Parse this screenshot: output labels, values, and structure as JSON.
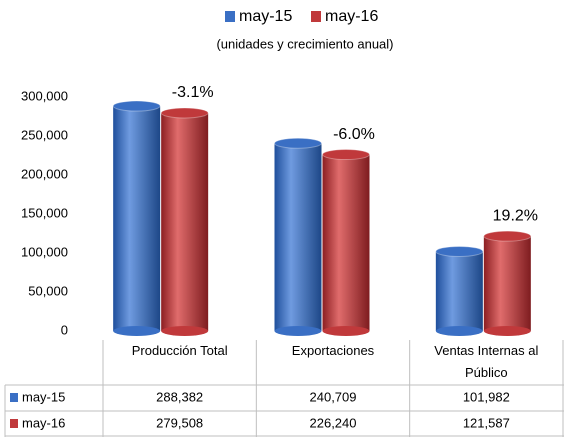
{
  "chart_data": {
    "type": "bar",
    "subtitle": "(unidades y crecimiento anual)",
    "categories": [
      "Producción Total",
      "Exportaciones",
      "Ventas Internas al Público"
    ],
    "series": [
      {
        "name": "may-15",
        "color": "#3a6fc4",
        "values": [
          288382,
          240709,
          101982
        ],
        "value_labels": [
          "288,382",
          "240,709",
          "101,982"
        ]
      },
      {
        "name": "may-16",
        "color": "#c0393b",
        "values": [
          279508,
          226240,
          121587
        ],
        "value_labels": [
          "279,508",
          "226,240",
          "121,587"
        ]
      }
    ],
    "growth": {
      "values": [
        -3.1,
        -6.0,
        19.2
      ],
      "value_labels": [
        "-3.1%",
        "-6.0%",
        "19.2%"
      ]
    },
    "ylim": [
      0,
      300000
    ],
    "yticks": [
      {
        "value": 0,
        "label": "0"
      },
      {
        "value": 50000,
        "label": "50,000"
      },
      {
        "value": 100000,
        "label": "100,000"
      },
      {
        "value": 150000,
        "label": "150,000"
      },
      {
        "value": 200000,
        "label": "200,000"
      },
      {
        "value": 250000,
        "label": "250,000"
      },
      {
        "value": 300000,
        "label": "300,000"
      }
    ],
    "legend": "top"
  }
}
